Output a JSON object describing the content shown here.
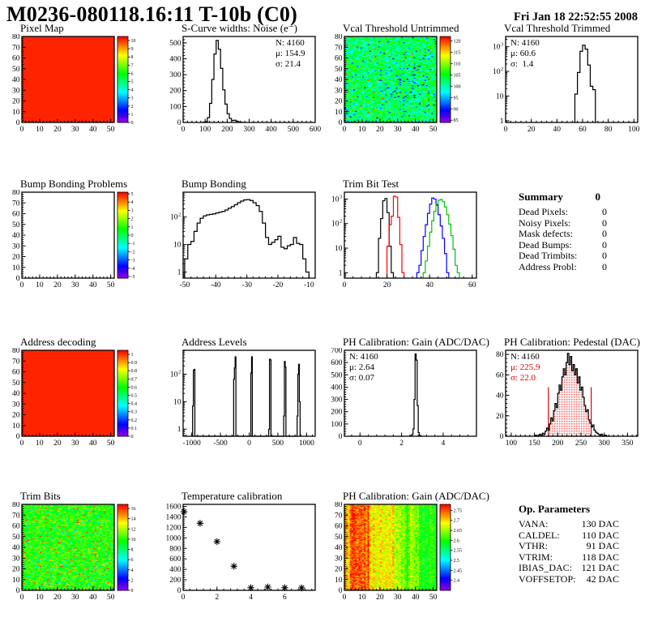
{
  "header": {
    "title": "M0236-080118.16:11 T-10b (C0)",
    "date": "Fri Jan 18 22:52:55 2008"
  },
  "summary": {
    "title": "Summary",
    "total": "0",
    "rows": [
      {
        "label": "Dead Pixels:",
        "value": "0"
      },
      {
        "label": "Noisy Pixels:",
        "value": "0"
      },
      {
        "label": "Mask defects:",
        "value": "0"
      },
      {
        "label": "Dead Bumps:",
        "value": "0"
      },
      {
        "label": "Dead Trimbits:",
        "value": "0"
      },
      {
        "label": "Address Probl:",
        "value": "0"
      }
    ]
  },
  "op_parameters": {
    "title": "Op. Parameters",
    "rows": [
      {
        "label": "VANA:",
        "value": "130 DAC"
      },
      {
        "label": "CALDEL:",
        "value": "110 DAC"
      },
      {
        "label": "VTHR:",
        "value": "91 DAC"
      },
      {
        "label": "VTRIM:",
        "value": "118 DAC"
      },
      {
        "label": "IBIAS_DAC:",
        "value": "121 DAC"
      },
      {
        "label": "VOFFSETOP:",
        "value": "42 DAC"
      }
    ]
  },
  "chart_data": [
    {
      "id": "pixel_map",
      "type": "heatmap",
      "title": "Pixel Map",
      "x_range": [
        0,
        52
      ],
      "y_range": [
        0,
        80
      ],
      "x_ticks": [
        0,
        10,
        20,
        30,
        40,
        50
      ],
      "y_ticks": [
        0,
        10,
        20,
        30,
        40,
        50,
        60,
        70,
        80
      ],
      "fill": {
        "mode": "solid"
      },
      "colorbar": {
        "min": 0,
        "max": 10.5,
        "labels": [
          0,
          1,
          2,
          3,
          4,
          5,
          6,
          7,
          8,
          9,
          10
        ]
      },
      "note": "uniform maximum response (all red)"
    },
    {
      "id": "scurve_noise",
      "type": "hist",
      "title": "S-Curve widths: Noise (e⁻)",
      "x_range": [
        0,
        600
      ],
      "y_range": [
        0,
        540
      ],
      "x_ticks": [
        0,
        100,
        200,
        300,
        400,
        500,
        600
      ],
      "y_ticks": [
        0,
        100,
        200,
        300,
        400,
        500
      ],
      "bins": {
        "start": 90,
        "width": 10,
        "counts": [
          2,
          5,
          30,
          120,
          270,
          430,
          515,
          460,
          340,
          205,
          115,
          55,
          25,
          12,
          14,
          8,
          3,
          1
        ]
      },
      "stats": {
        "pos": "right",
        "lines": [
          [
            "N: 4160",
            "#000000"
          ],
          [
            "μ: 154.9",
            "#000000"
          ],
          [
            "σ: 21.4",
            "#000000"
          ]
        ]
      }
    },
    {
      "id": "vcal_threshold_untrimmed",
      "type": "heatmap",
      "title": "Vcal Threshold Untrimmed",
      "x_range": [
        0,
        52
      ],
      "y_range": [
        0,
        80
      ],
      "x_ticks": [
        0,
        10,
        20,
        30,
        40,
        50
      ],
      "y_ticks": [
        0,
        10,
        20,
        30,
        40,
        50,
        60,
        70,
        80
      ],
      "fill": {
        "mode": "noise",
        "seed": 11,
        "base": 103,
        "jitter": 5.5,
        "low_chance": 0.05,
        "low_shift": -9,
        "hot_chance": 0.004,
        "hot_value": 119,
        "left_edge_chance": 0.3,
        "left_edge_value": 117,
        "cluster": {
          "x0": 20,
          "x1": 44,
          "y0": 16,
          "y1": 52,
          "chance": 0.13,
          "shift": -8
        },
        "overrides": [
          [
            0,
            0,
            86
          ]
        ]
      },
      "colorbar": {
        "min": 84,
        "max": 122,
        "labels": [
          85,
          90,
          95,
          100,
          105,
          110,
          115,
          120
        ]
      }
    },
    {
      "id": "vcal_threshold_trimmed",
      "type": "hist",
      "title": "Vcal Threshold Trimmed",
      "y_log": true,
      "x_range": [
        0,
        103
      ],
      "y_range": [
        0.85,
        2600
      ],
      "x_ticks": [
        0,
        20,
        40,
        60,
        80,
        100
      ],
      "bins": {
        "start": 54,
        "width": 2,
        "counts": [
          12,
          90,
          650,
          1150,
          800,
          180,
          25,
          18
        ]
      },
      "stats": {
        "pos": "left",
        "lines": [
          [
            "N: 4160",
            "#000000"
          ],
          [
            "μ: 60.6",
            "#000000"
          ],
          [
            "σ:  1.4",
            "#000000"
          ]
        ]
      }
    },
    {
      "id": "bump_bonding_problems",
      "type": "heatmap",
      "title": "Bump Bonding Problems",
      "x_range": [
        0,
        52
      ],
      "y_range": [
        0,
        80
      ],
      "x_ticks": [
        0,
        10,
        20,
        30,
        40,
        50
      ],
      "y_ticks": [
        0,
        10,
        20,
        30,
        40,
        50,
        60,
        70,
        80
      ],
      "fill": {
        "mode": "empty"
      },
      "colorbar": {
        "min": -5.2,
        "max": 5.2,
        "labels": [
          -5,
          -4,
          -3,
          -2,
          -1,
          0,
          1,
          2,
          3,
          4,
          5
        ]
      },
      "note": "no entries (empty map)"
    },
    {
      "id": "bump_bonding",
      "type": "hist",
      "title": "Bump Bonding",
      "y_log": true,
      "x_range": [
        -50.5,
        -8
      ],
      "y_range": [
        0.6,
        800
      ],
      "x_ticks": [
        -50,
        -40,
        -30,
        -20,
        -10
      ],
      "bins": {
        "start": -50,
        "width": 1,
        "counts": [
          3,
          10,
          13,
          30,
          60,
          90,
          110,
          120,
          125,
          130,
          140,
          150,
          160,
          180,
          210,
          240,
          280,
          330,
          380,
          420,
          430,
          400,
          330,
          260,
          160,
          60,
          18,
          10,
          12,
          15,
          20,
          8,
          7,
          9,
          10,
          18,
          11,
          10,
          3,
          1
        ]
      }
    },
    {
      "id": "trim_bit_test",
      "type": "multihist",
      "title": "Trim Bit Test",
      "y_log": true,
      "x_range": [
        0,
        62
      ],
      "y_range": [
        0.6,
        1900
      ],
      "x_ticks": [
        0,
        20,
        40,
        60
      ],
      "series": [
        {
          "name": "trim bit 0",
          "color": "#000000",
          "bins": {
            "start": 15,
            "width": 1,
            "counts": [
              1,
              25,
              160,
              850,
              1050,
              280,
              12,
              1
            ]
          }
        },
        {
          "name": "trim bit 1",
          "color": "#ff0000",
          "bins": {
            "start": 20,
            "width": 1,
            "counts": [
              12,
              90,
              200,
              1300,
              1200,
              180,
              14,
              1
            ]
          }
        },
        {
          "name": "trim bit 2",
          "color": "#0000ff",
          "bins": {
            "start": 34,
            "width": 1,
            "counts": [
              1,
              2,
              8,
              30,
              90,
              260,
              620,
              1100,
              1000,
              560,
              230,
              80,
              25,
              6,
              1
            ]
          }
        },
        {
          "name": "trim bit 3",
          "color": "#00c000",
          "bins": {
            "start": 37,
            "width": 1,
            "counts": [
              1,
              3,
              12,
              45,
              130,
              320,
              620,
              900,
              950,
              780,
              480,
              230,
              95,
              32,
              9,
              2,
              1
            ]
          }
        }
      ]
    },
    {
      "id": "address_decoding",
      "type": "heatmap",
      "title": "Address decoding",
      "x_range": [
        0,
        52
      ],
      "y_range": [
        0,
        80
      ],
      "x_ticks": [
        0,
        10,
        20,
        30,
        40,
        50
      ],
      "y_ticks": [
        0,
        10,
        20,
        30,
        40,
        50,
        60,
        70,
        80
      ],
      "fill": {
        "mode": "solid"
      },
      "colorbar": {
        "min": 0,
        "max": 1.05,
        "labels": [
          0,
          0.1,
          0.2,
          0.3,
          0.4,
          0.5,
          0.6,
          0.7,
          0.8,
          0.9,
          1
        ]
      },
      "note": "uniform value 1 (all red)"
    },
    {
      "id": "address_levels",
      "type": "hist",
      "title": "Address Levels",
      "y_log": true,
      "x_range": [
        -1150,
        1150
      ],
      "y_range": [
        0.55,
        740
      ],
      "x_ticks": [
        -1000,
        -500,
        0,
        500,
        1000
      ],
      "sparse_bins": {
        "width": 13,
        "bins": [
          [
            -985,
            7
          ],
          [
            -972,
            140
          ],
          [
            -959,
            150
          ],
          [
            -272,
            65
          ],
          [
            -259,
            170
          ],
          [
            -246,
            430
          ],
          [
            28,
            110
          ],
          [
            41,
            430
          ],
          [
            338,
            1
          ],
          [
            351,
            350
          ],
          [
            364,
            330
          ],
          [
            595,
            3
          ],
          [
            608,
            290
          ],
          [
            621,
            180
          ],
          [
            838,
            3
          ],
          [
            851,
            100
          ],
          [
            864,
            230
          ],
          [
            877,
            10
          ]
        ]
      }
    },
    {
      "id": "ph_calibration_gain_hist",
      "type": "hist",
      "title": "PH Calibration: Gain (ADC/DAC)",
      "x_range": [
        -0.75,
        5.6
      ],
      "y_range": [
        0,
        700
      ],
      "x_ticks": [
        0,
        2,
        4
      ],
      "y_ticks": [
        0,
        100,
        200,
        300,
        400,
        500,
        600,
        700
      ],
      "bins": {
        "start": 2.4,
        "width": 0.05,
        "counts": [
          2,
          5,
          15,
          60,
          300,
          670,
          620,
          250,
          30,
          8,
          2
        ]
      },
      "stats": {
        "pos": "left",
        "lines": [
          [
            "N: 4160",
            "#000000"
          ],
          [
            "μ: 2.64",
            "#000000"
          ],
          [
            "σ: 0.07",
            "#000000"
          ]
        ]
      }
    },
    {
      "id": "ph_calibration_pedestal",
      "type": "hist",
      "title": "PH Calibration: Pedestal (DAC)",
      "x_range": [
        88,
        372
      ],
      "y_range": [
        0,
        84
      ],
      "x_ticks": [
        100,
        150,
        200,
        250,
        300,
        350
      ],
      "y_ticks": [
        0,
        20,
        40,
        60,
        80
      ],
      "bins": {
        "start": 152,
        "width": 3,
        "counts": [
          1,
          0,
          1,
          2,
          1,
          3,
          2,
          5,
          8,
          6,
          12,
          18,
          15,
          25,
          32,
          28,
          42,
          50,
          45,
          58,
          66,
          60,
          72,
          81,
          70,
          78,
          64,
          70,
          60,
          66,
          52,
          58,
          45,
          48,
          38,
          30,
          24,
          26,
          16,
          13,
          9,
          11,
          6,
          4,
          3,
          2,
          1,
          2,
          0,
          1,
          1,
          0
        ]
      },
      "fill_between": {
        "x0": 180,
        "x1": 272,
        "style": "red-dots"
      },
      "vlines": [
        {
          "x": 180,
          "y": 48,
          "color": "#dd0000"
        },
        {
          "x": 272,
          "y": 48,
          "color": "#dd0000"
        }
      ],
      "stats": {
        "pos": "left",
        "lines": [
          [
            "N: 4160",
            "#000000"
          ],
          [
            "μ: 225.9",
            "#dd0000"
          ],
          [
            "σ: 22.0",
            "#dd0000"
          ]
        ]
      }
    },
    {
      "id": "trim_bits",
      "type": "heatmap",
      "title": "Trim Bits",
      "x_range": [
        0,
        52
      ],
      "y_range": [
        0,
        80
      ],
      "x_ticks": [
        0,
        10,
        20,
        30,
        40,
        50
      ],
      "y_ticks": [
        0,
        10,
        20,
        30,
        40,
        50,
        60,
        70,
        80
      ],
      "fill": {
        "mode": "noise",
        "seed": 5,
        "base": 10,
        "jitter": 1.7,
        "hot_chance": 0.06,
        "hot_value": 13.8,
        "low_chance": 0.05,
        "low_shift": -3.2,
        "overrides": [
          [
            51,
            79,
            4
          ],
          [
            51,
            78,
            6
          ],
          [
            51,
            0,
            1
          ],
          [
            51,
            1,
            2
          ]
        ]
      },
      "colorbar": {
        "min": 0,
        "max": 16.8,
        "labels": [
          0,
          2,
          4,
          6,
          8,
          10,
          12,
          14,
          16
        ]
      }
    },
    {
      "id": "temperature_calibration",
      "type": "scatter",
      "title": "Temperature calibration",
      "x_range": [
        0,
        7.8
      ],
      "y_range": [
        0,
        1640
      ],
      "x_ticks": [
        0,
        2,
        4,
        6
      ],
      "y_ticks": [
        0,
        200,
        400,
        600,
        800,
        1000,
        1200,
        1400,
        1600
      ],
      "points": [
        [
          0.05,
          1500
        ],
        [
          1,
          1280
        ],
        [
          2,
          930
        ],
        [
          3,
          460
        ],
        [
          4,
          50
        ],
        [
          5,
          62
        ],
        [
          6,
          50
        ],
        [
          7,
          48
        ]
      ],
      "marker": "asterisk"
    },
    {
      "id": "ph_calibration_gain_map",
      "type": "heatmap",
      "title": "PH Calibration: Gain (ADC/DAC)",
      "x_range": [
        0,
        52
      ],
      "y_range": [
        0,
        80
      ],
      "x_ticks": [
        0,
        10,
        20,
        30,
        40,
        50
      ],
      "y_ticks": [
        0,
        10,
        20,
        30,
        40,
        50,
        60,
        70,
        80
      ],
      "fill": {
        "mode": "stripes",
        "seed": 9,
        "jitter": 0.035,
        "cols": [
          2.7,
          2.72,
          2.69,
          2.745,
          2.755,
          2.76,
          2.75,
          2.74,
          2.755,
          2.75,
          2.74,
          2.75,
          2.73,
          2.76,
          2.7,
          2.69,
          2.7,
          2.69,
          2.68,
          2.69,
          2.7,
          2.69,
          2.68,
          2.69,
          2.68,
          2.69,
          2.68,
          2.705,
          2.66,
          2.65,
          2.66,
          2.65,
          2.64,
          2.65,
          2.62,
          2.6,
          2.63,
          2.66,
          2.65,
          2.64,
          2.63,
          2.64,
          2.6,
          2.59,
          2.61,
          2.58,
          2.6,
          2.59,
          2.62,
          2.61,
          2.6,
          2.57
        ]
      },
      "colorbar": {
        "min": 2.35,
        "max": 2.78,
        "labels": [
          2.4,
          2.45,
          2.5,
          2.55,
          2.6,
          2.65,
          2.7,
          2.75
        ]
      }
    }
  ]
}
